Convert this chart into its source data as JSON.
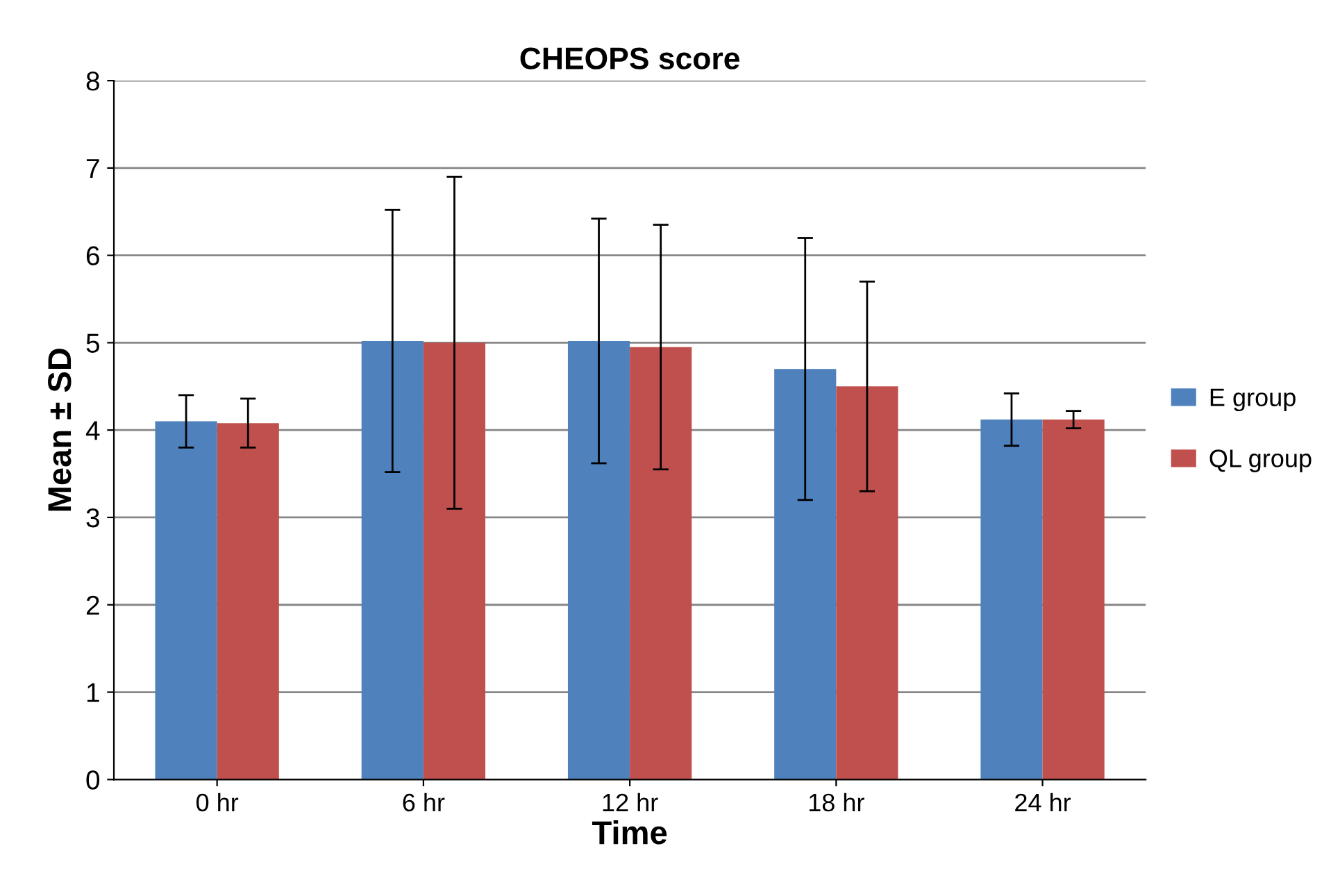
{
  "chart_data": {
    "type": "bar",
    "title": "CHEOPS score",
    "xlabel": "Time",
    "ylabel": "Mean ± SD",
    "categories": [
      "0 hr",
      "6 hr",
      "12 hr",
      "18 hr",
      "24 hr"
    ],
    "series": [
      {
        "name": "E group",
        "color": "#4f81bd",
        "values": [
          4.1,
          5.02,
          5.02,
          4.7,
          4.12
        ],
        "errors": [
          0.3,
          1.5,
          1.4,
          1.5,
          0.3
        ]
      },
      {
        "name": "QL group",
        "color": "#c0504d",
        "values": [
          4.08,
          5.0,
          4.95,
          4.5,
          4.12
        ],
        "errors": [
          0.28,
          1.9,
          1.4,
          1.2,
          0.1
        ]
      }
    ],
    "ylim": [
      0,
      8
    ],
    "yticks": [
      0,
      1,
      2,
      3,
      4,
      5,
      6,
      7,
      8
    ],
    "grid": "y",
    "legend": "right"
  }
}
